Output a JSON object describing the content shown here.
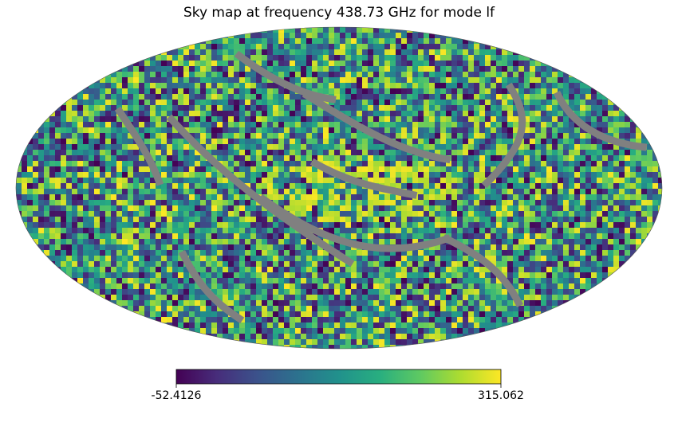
{
  "chart_data": {
    "type": "heatmap",
    "title": "Sky map at frequency 438.73 GHz for mode lf",
    "projection": "mollweide",
    "colormap": "viridis",
    "masked_color": "#808080",
    "colorbar": {
      "orientation": "horizontal",
      "min": -52.4126,
      "max": 315.062,
      "min_label": "-52.4126",
      "max_label": "315.062"
    },
    "grid": false
  }
}
